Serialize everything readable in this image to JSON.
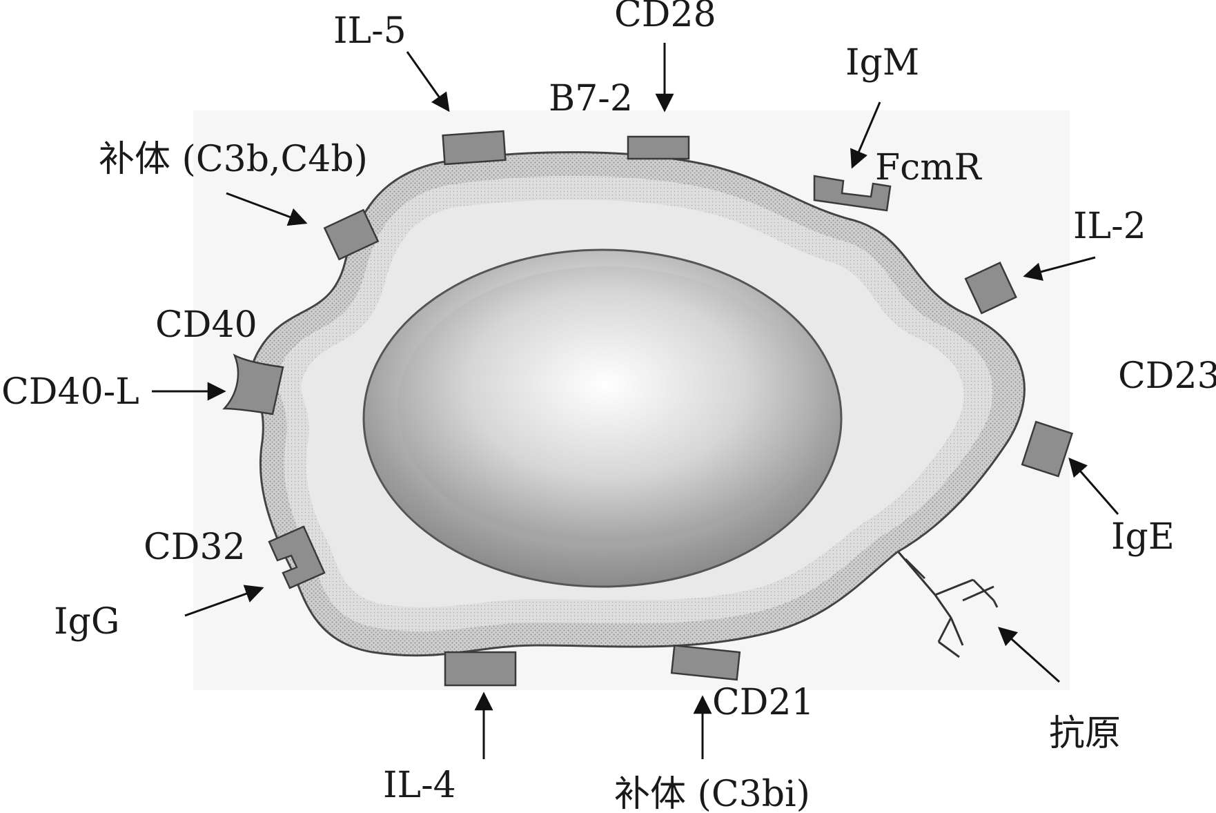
{
  "labels": {
    "il5": "IL-5",
    "cd28": "CD28",
    "b7_2": "B7-2",
    "igm": "IgM",
    "fcmr": "FcmR",
    "complement_c3b_c4b": "补体 (C3b,C4b)",
    "il2": "IL-2",
    "cd40": "CD40",
    "cd40l": "CD40-L",
    "cd23": "CD23",
    "cd32": "CD32",
    "ige": "IgE",
    "igg": "IgG",
    "cd21": "CD21",
    "antigen": "抗原",
    "il4": "IL-4",
    "complement_c3bi": "补体 (C3bi)"
  },
  "colors": {
    "membrane": "#bdbdbd",
    "cytoplasm": "#e6e6e6",
    "nucleus_rim": "#8a8a8a",
    "nucleus_center": "#f5f5f5",
    "receptor": "#8e8e8e",
    "ink": "#1a1a1a"
  }
}
